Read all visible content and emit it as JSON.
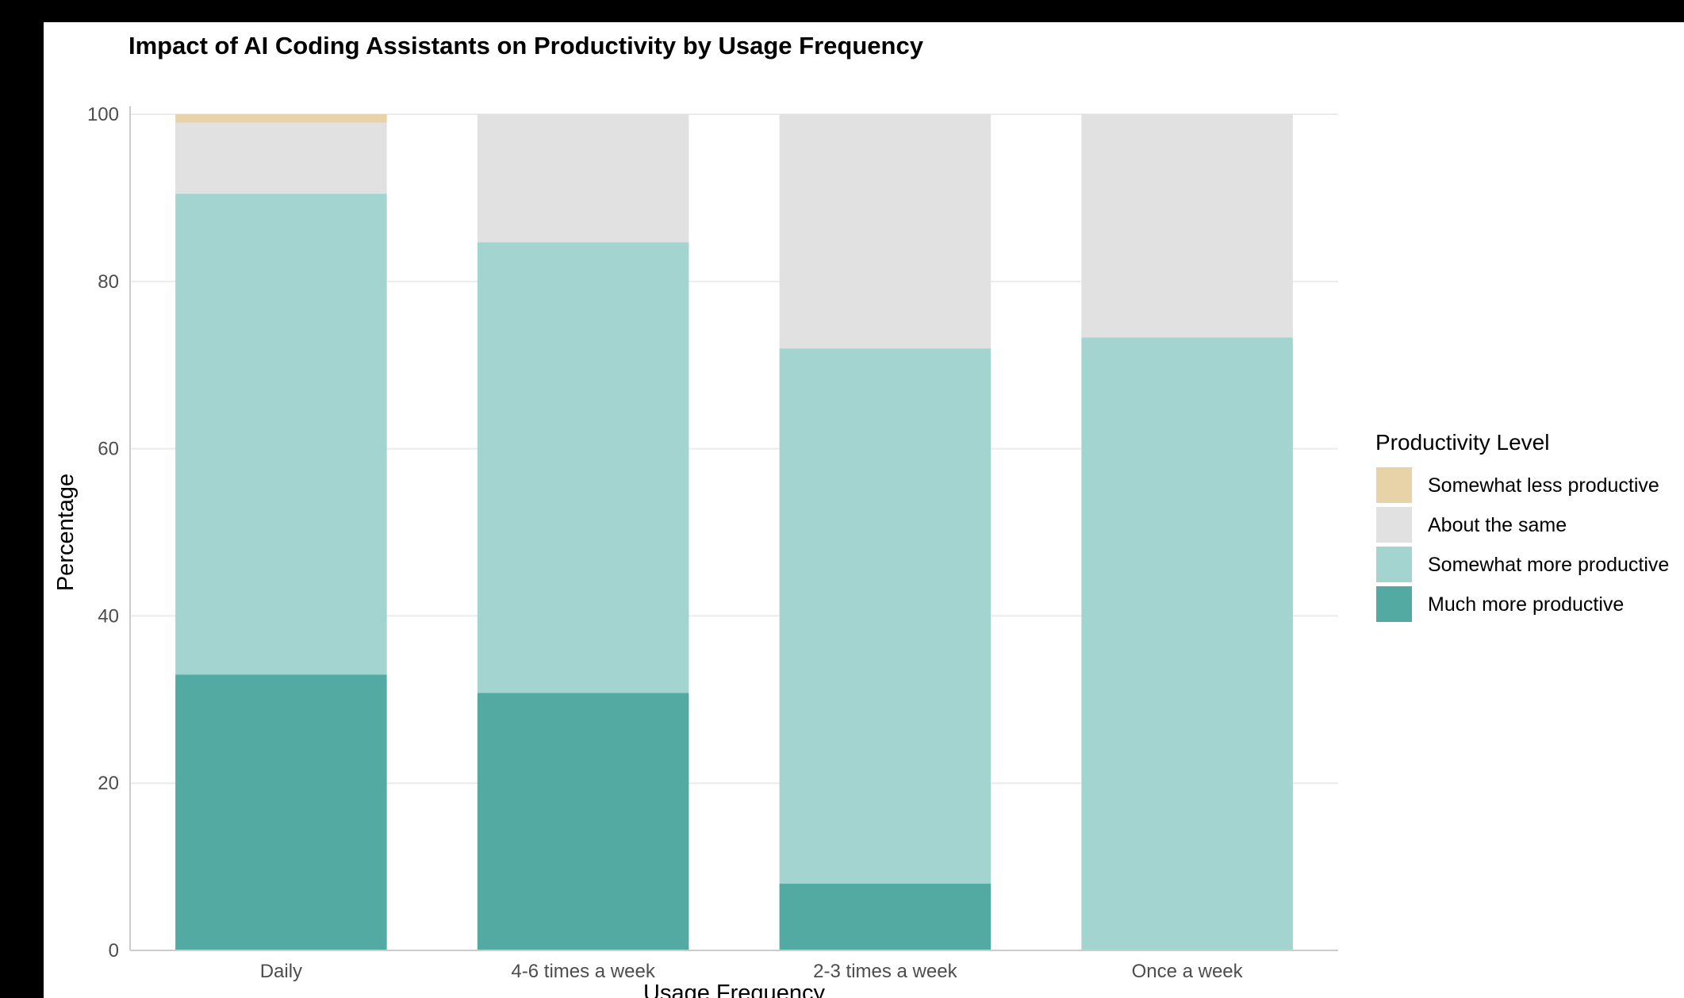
{
  "chart_data": {
    "type": "bar",
    "stacked": true,
    "title": "Impact of AI Coding Assistants on Productivity by Usage Frequency",
    "xlabel": "Usage Frequency",
    "ylabel": "Percentage",
    "ylim": [
      0,
      100
    ],
    "yticks": [
      0,
      20,
      40,
      60,
      80,
      100
    ],
    "grid": true,
    "categories": [
      "Daily",
      "4-6 times a week",
      "2-3 times a week",
      "Once a week"
    ],
    "series": [
      {
        "name": "Much more productive",
        "color": "#52aaa3",
        "values": [
          33.0,
          30.8,
          8.0,
          0.0
        ]
      },
      {
        "name": "Somewhat more productive",
        "color": "#a4d4d0",
        "values": [
          57.5,
          53.9,
          64.0,
          73.3
        ]
      },
      {
        "name": "About the same",
        "color": "#e1e1e1",
        "values": [
          8.5,
          15.3,
          28.0,
          26.7
        ]
      },
      {
        "name": "Somewhat less productive",
        "color": "#e8d2a8",
        "values": [
          1.0,
          0.0,
          0.0,
          0.0
        ]
      }
    ],
    "legend": {
      "title": "Productivity Level",
      "position": "right",
      "order": [
        "Somewhat less productive",
        "About the same",
        "Somewhat more productive",
        "Much more productive"
      ]
    }
  }
}
